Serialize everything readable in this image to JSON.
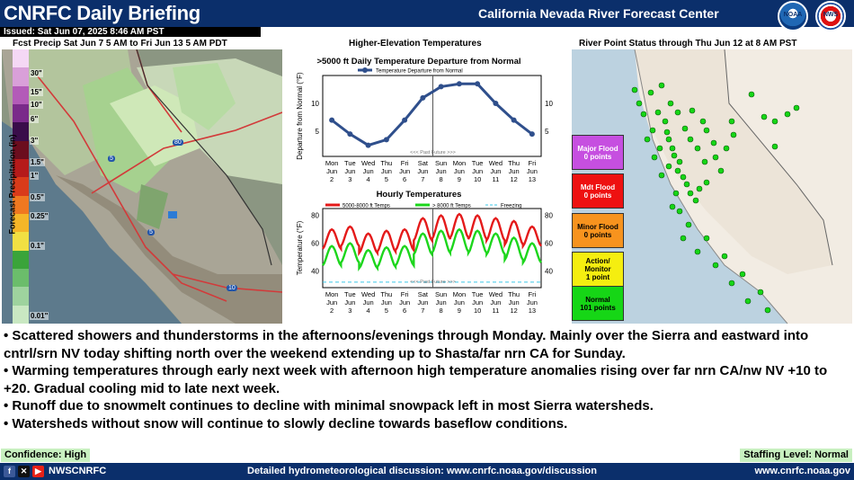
{
  "header": {
    "title": "CNRFC Daily Briefing",
    "center_title": "California Nevada River Forecast Center",
    "issued": "Issued: Sat Jun 07, 2025 8:46 AM PST",
    "noaa_logo_text": "NOAA",
    "nws_logo_text": "NWS"
  },
  "precip": {
    "title": "Fcst Precip Sat Jun 7 5 AM to Fri Jun 13 5 AM PDT",
    "axis_label": "Forecast Precipitation (in)",
    "legend_ticks": [
      "30\"",
      "15\"",
      "10\"",
      "6\"",
      "3\"",
      "1.5\"",
      "1\"",
      "0.5\"",
      "0.25\"",
      "0.1\"",
      "0.01\""
    ],
    "legend_colors": [
      "#f5d8f5",
      "#d9a0d9",
      "#b35bb8",
      "#7a2a8a",
      "#3a0d4a",
      "#6b0d1e",
      "#b51a1a",
      "#d93b1a",
      "#f07820",
      "#f5b628",
      "#f2e043",
      "#3aa43a",
      "#6bbd6b",
      "#9ed39e",
      "#c9e8c2"
    ],
    "highway_labels": [
      "80",
      "5",
      "5",
      "10"
    ]
  },
  "higher_temps": {
    "section_title": "Higher-Elevation Temperatures",
    "departure_title": ">5000 ft Daily Temperature Departure from Normal",
    "departure_legend": "Temperature Departure from Normal",
    "departure_ylabel": "Departure from Normal (°F)",
    "past_future": "<<< Past Future >>>",
    "hourly_title": "Hourly Temperatures",
    "hourly_legend_a": "5000-8000 ft Temps",
    "hourly_legend_b": "> 8000 ft Temps",
    "hourly_legend_c": "Freezing",
    "hourly_ylabel": "Temperature (°F)"
  },
  "chart_data": [
    {
      "type": "line",
      "title": ">5000 ft Daily Temperature Departure from Normal",
      "ylabel": "Departure from Normal (°F)",
      "x": [
        "Mon Jun 2",
        "Tue Jun 3",
        "Wed Jun 4",
        "Thu Jun 5",
        "Fri Jun 6",
        "Sat Jun 7",
        "Sun Jun 8",
        "Mon Jun 9",
        "Tue Jun 10",
        "Wed Jun 11",
        "Thu Jun 12",
        "Fri Jun 13"
      ],
      "series": [
        {
          "name": "Temperature Departure from Normal",
          "values": [
            7,
            4.5,
            2.5,
            3.5,
            7,
            11,
            13,
            13.5,
            13.5,
            10,
            7,
            4.5
          ]
        }
      ],
      "ylim": [
        0.5,
        15
      ],
      "yticks": [
        5,
        10
      ],
      "color": "#2f4f8c"
    },
    {
      "type": "line",
      "title": "Hourly Temperatures",
      "ylabel": "Temperature (°F)",
      "x": [
        "Mon Jun 2",
        "Tue Jun 3",
        "Wed Jun 4",
        "Thu Jun 5",
        "Fri Jun 6",
        "Sat Jun 7",
        "Sun Jun 8",
        "Mon Jun 9",
        "Tue Jun 10",
        "Wed Jun 11",
        "Thu Jun 12",
        "Fri Jun 13"
      ],
      "series": [
        {
          "name": "5000-8000 ft Temps",
          "daily_high": [
            70,
            72,
            67,
            69,
            70,
            78,
            80,
            81,
            80,
            78,
            76,
            72
          ],
          "daily_low": [
            56,
            58,
            53,
            54,
            55,
            62,
            63,
            64,
            63,
            62,
            59,
            58
          ],
          "color": "#e41a1a"
        },
        {
          "name": "> 8000 ft Temps",
          "daily_high": [
            58,
            60,
            55,
            57,
            58,
            67,
            69,
            70,
            69,
            67,
            64,
            60
          ],
          "daily_low": [
            44,
            46,
            42,
            43,
            44,
            52,
            53,
            54,
            53,
            52,
            48,
            46
          ],
          "color": "#1cd61c"
        },
        {
          "name": "Freezing",
          "value": 32,
          "color": "#3cc8e8"
        }
      ],
      "ylim": [
        28,
        85
      ],
      "yticks": [
        40,
        60,
        80
      ]
    }
  ],
  "axis_days": [
    {
      "dow": "Mon",
      "mon": "Jun",
      "day": "2"
    },
    {
      "dow": "Tue",
      "mon": "Jun",
      "day": "3"
    },
    {
      "dow": "Wed",
      "mon": "Jun",
      "day": "4"
    },
    {
      "dow": "Thu",
      "mon": "Jun",
      "day": "5"
    },
    {
      "dow": "Fri",
      "mon": "Jun",
      "day": "6"
    },
    {
      "dow": "Sat",
      "mon": "Jun",
      "day": "7"
    },
    {
      "dow": "Sun",
      "mon": "Jun",
      "day": "8"
    },
    {
      "dow": "Mon",
      "mon": "Jun",
      "day": "9"
    },
    {
      "dow": "Tue",
      "mon": "Jun",
      "day": "10"
    },
    {
      "dow": "Wed",
      "mon": "Jun",
      "day": "11"
    },
    {
      "dow": "Thu",
      "mon": "Jun",
      "day": "12"
    },
    {
      "dow": "Fri",
      "mon": "Jun",
      "day": "13"
    }
  ],
  "river": {
    "title": "River Point Status through Thu Jun 12 at 8 AM PST",
    "statuses": [
      {
        "label": "Major Flood",
        "count": "0 points",
        "color": "#c64fe0",
        "text": "#ffffff"
      },
      {
        "label": "Mdt Flood",
        "count": "0 points",
        "color": "#ee1111",
        "text": "#ffffff"
      },
      {
        "label": "Minor Flood",
        "count": "0 points",
        "color": "#f7931e",
        "text": "#000000"
      },
      {
        "label": "Action/ Monitor",
        "count": "1 point",
        "color": "#f5ee10",
        "text": "#000000"
      },
      {
        "label": "Normal",
        "count": "101 points",
        "color": "#16d616",
        "text": "#000000"
      }
    ]
  },
  "bullets": [
    "• Scattered showers and thunderstorms in the afternoons/evenings through Monday. Mainly over the Sierra and eastward into cntrl/srn NV today shifting north over the weekend extending up to Shasta/far nrn CA for Sunday.",
    "• Warming temperatures through early next week with afternoon high temperature anomalies rising over far nrn CA/nw NV +10 to +20. Gradual cooling mid to late next week.",
    "• Runoff due to snowmelt continues to decline with minimal snowpack left in most Sierra watersheds.",
    "• Watersheds without snow will continue to slowly decline towards baseflow conditions."
  ],
  "confidence": "Confidence: High",
  "staffing": "Staffing Level: Normal",
  "footer": {
    "social_handle": "NWSCNRFC",
    "social_icons": [
      "facebook-icon",
      "x-icon",
      "youtube-icon"
    ],
    "discussion": "Detailed hydrometeorological discussion: www.cnrfc.noaa.gov/discussion",
    "site": "www.cnrfc.noaa.gov"
  }
}
